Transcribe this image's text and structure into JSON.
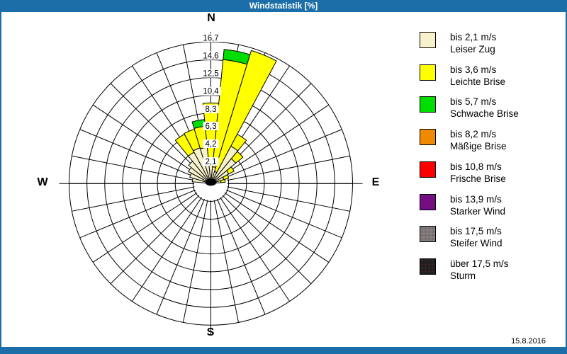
{
  "window": {
    "title": "Windstatistik [%]"
  },
  "date_label": "15.8.2016",
  "colors": {
    "frame_blue": "#1c6ea8",
    "c1": "#f7f1cc",
    "c2": "#ffff00",
    "c3": "#00dd00",
    "c4": "#ef8a00",
    "c5": "#fa0000",
    "c6": "#740b8c",
    "c7": "#7f7f7f",
    "c8": "#1f1f1f"
  },
  "legend": {
    "items": [
      {
        "speed": "bis 2,1 m/s",
        "name": "Leiser Zug",
        "color_key": "c1",
        "dotted": false
      },
      {
        "speed": "bis 3,6 m/s",
        "name": "Leichte Brise",
        "color_key": "c2",
        "dotted": false
      },
      {
        "speed": "bis 5,7 m/s",
        "name": "Schwache Brise",
        "color_key": "c3",
        "dotted": false
      },
      {
        "speed": "bis 8,2 m/s",
        "name": "Mäßige Brise",
        "color_key": "c4",
        "dotted": false
      },
      {
        "speed": "bis 10,8 m/s",
        "name": "Frische Brise",
        "color_key": "c5",
        "dotted": false
      },
      {
        "speed": "bis 13,9 m/s",
        "name": "Starker Wind",
        "color_key": "c6",
        "dotted": true
      },
      {
        "speed": "bis 17,5 m/s",
        "name": "Steifer Wind",
        "color_key": "c7",
        "dotted": true
      },
      {
        "speed": "über 17,5 m/s",
        "name": "Sturm",
        "color_key": "c8",
        "dotted": true
      }
    ]
  },
  "chart_data": {
    "type": "windrose",
    "title": "Windstatistik [%]",
    "units": "%",
    "compass": {
      "n": "N",
      "e": "E",
      "s": "S",
      "w": "W"
    },
    "ring_values": [
      2.1,
      4.2,
      6.3,
      8.3,
      10.4,
      12.5,
      14.6,
      16.7
    ],
    "ring_labels": [
      "2,1",
      "4,2",
      "6,3",
      "8,3",
      "10,4",
      "12,5",
      "14,6",
      "16,7"
    ],
    "max_value": 16.7,
    "sector_count": 32,
    "sector_width_deg": 11.25,
    "grid": "polar, 8 rings, 32 spokes, N/E/S/W axes extended",
    "calm_marker": "black dot at center inside white calm circle",
    "bars": [
      {
        "dir_deg": 281.25,
        "tops": [
          [
            "c1",
            2.2
          ]
        ]
      },
      {
        "dir_deg": 292.5,
        "tops": [
          [
            "c1",
            2.6
          ]
        ]
      },
      {
        "dir_deg": 303.75,
        "tops": [
          [
            "c1",
            3.0
          ]
        ]
      },
      {
        "dir_deg": 315.0,
        "tops": [
          [
            "c1",
            3.4
          ]
        ]
      },
      {
        "dir_deg": 326.25,
        "tops": [
          [
            "c1",
            4.2
          ],
          [
            "c2",
            6.6
          ]
        ]
      },
      {
        "dir_deg": 337.5,
        "tops": [
          [
            "c1",
            4.4
          ],
          [
            "c2",
            6.7
          ]
        ]
      },
      {
        "dir_deg": 348.75,
        "tops": [
          [
            "c1",
            4.3
          ],
          [
            "c2",
            6.8
          ],
          [
            "c3",
            7.6
          ]
        ]
      },
      {
        "dir_deg": 0.0,
        "tops": [
          [
            "c1",
            2.4
          ],
          [
            "c2",
            9.5
          ]
        ]
      },
      {
        "dir_deg": 11.25,
        "tops": [
          [
            "c1",
            2.0
          ],
          [
            "c2",
            14.7
          ],
          [
            "c3",
            15.9
          ]
        ]
      },
      {
        "dir_deg": 22.5,
        "tops": [
          [
            "c1",
            1.5
          ],
          [
            "c2",
            16.4
          ]
        ]
      },
      {
        "dir_deg": 33.75,
        "tops": [
          [
            "c1",
            5.0
          ],
          [
            "c2",
            6.6
          ]
        ]
      },
      {
        "dir_deg": 45.0,
        "tops": [
          [
            "c1",
            3.8
          ],
          [
            "c2",
            4.9
          ]
        ]
      },
      {
        "dir_deg": 56.25,
        "tops": [
          [
            "c1",
            2.4
          ],
          [
            "c2",
            3.1
          ]
        ]
      },
      {
        "dir_deg": 67.5,
        "tops": [
          [
            "c1",
            1.6
          ],
          [
            "c2",
            2.2
          ]
        ]
      },
      {
        "dir_deg": 78.75,
        "tops": [
          [
            "c1",
            1.2
          ],
          [
            "c2",
            1.7
          ]
        ]
      }
    ]
  }
}
